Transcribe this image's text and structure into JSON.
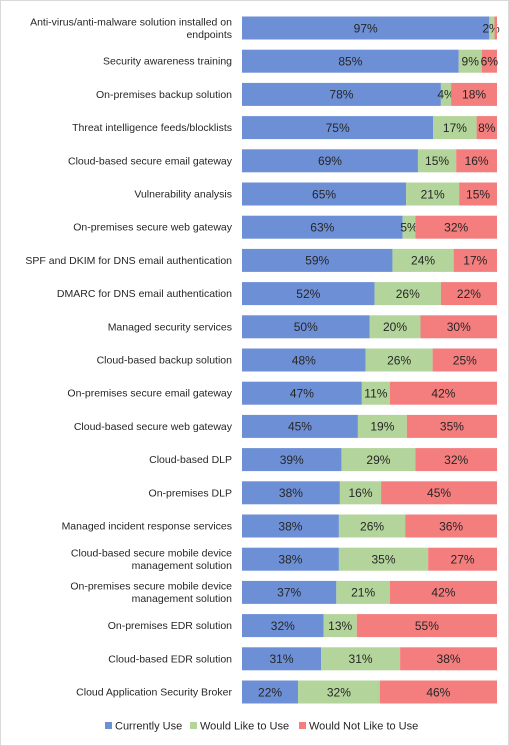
{
  "chart_data": {
    "type": "bar",
    "orientation": "horizontal",
    "stacked": true,
    "categories": [
      "Anti-virus/anti-malware solution installed on endpoints",
      "Security awareness training",
      "On-premises backup solution",
      "Threat intelligence feeds/blocklists",
      "Cloud-based secure email gateway",
      "Vulnerability analysis",
      "On-premises secure web gateway",
      "SPF and DKIM for DNS email authentication",
      "DMARC for DNS email authentication",
      "Managed security services",
      "Cloud-based backup solution",
      "On-premises secure email gateway",
      "Cloud-based secure web gateway",
      "Cloud-based DLP",
      "On-premises DLP",
      "Managed incident response services",
      "Cloud-based secure mobile device management solution",
      "On-premises secure mobile device management solution",
      "On-premises EDR solution",
      "Cloud-based EDR solution",
      "Cloud Application Security Broker"
    ],
    "series": [
      {
        "name": "Currently Use",
        "color": "#6d8fd6",
        "values": [
          97,
          85,
          78,
          75,
          69,
          65,
          63,
          59,
          52,
          50,
          48,
          47,
          45,
          39,
          38,
          38,
          38,
          37,
          32,
          31,
          22
        ],
        "labels": [
          "97%",
          "85%",
          "78%",
          "75%",
          "69%",
          "65%",
          "63%",
          "59%",
          "52%",
          "50%",
          "48%",
          "47%",
          "45%",
          "39%",
          "38%",
          "38%",
          "38%",
          "37%",
          "32%",
          "31%",
          "22%"
        ]
      },
      {
        "name": "Would Like to Use",
        "color": "#b3d49a",
        "values": [
          2,
          9,
          4,
          17,
          15,
          21,
          5,
          24,
          26,
          20,
          26,
          11,
          19,
          29,
          16,
          26,
          35,
          21,
          13,
          31,
          32
        ],
        "labels": [
          "2%",
          "9%",
          "4%",
          "17%",
          "15%",
          "21%",
          "5%",
          "24%",
          "26%",
          "20%",
          "26%",
          "11%",
          "19%",
          "29%",
          "16%",
          "26%",
          "35%",
          "21%",
          "13%",
          "31%",
          "32%"
        ]
      },
      {
        "name": "Would Not Like to Use",
        "color": "#f47d7d",
        "values": [
          1,
          6,
          18,
          8,
          16,
          15,
          32,
          17,
          22,
          30,
          25,
          42,
          35,
          32,
          45,
          36,
          27,
          42,
          55,
          38,
          46
        ],
        "labels": [
          "",
          "6%",
          "18%",
          "8%",
          "16%",
          "15%",
          "32%",
          "17%",
          "22%",
          "30%",
          "25%",
          "42%",
          "35%",
          "32%",
          "45%",
          "36%",
          "27%",
          "42%",
          "55%",
          "38%",
          "46%"
        ]
      }
    ],
    "legend": "bottom",
    "grid": false
  }
}
